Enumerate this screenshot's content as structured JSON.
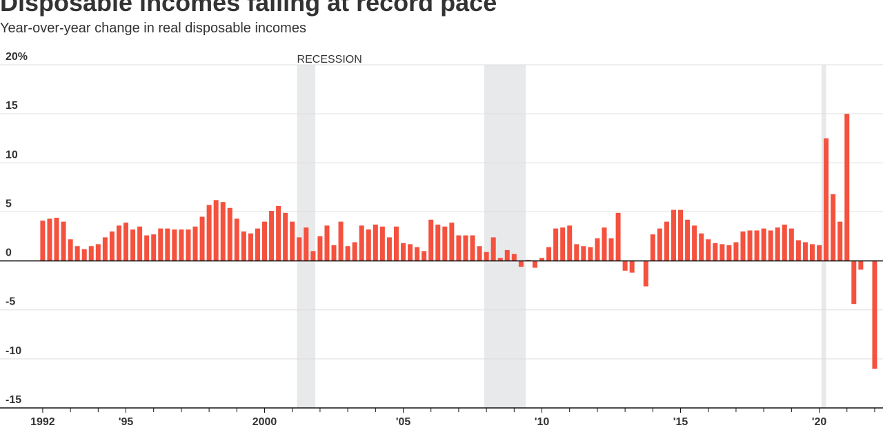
{
  "chart_data": {
    "type": "bar",
    "title": "Disposable incomes falling at record pace",
    "subtitle": "Year-over-year change in real disposable incomes",
    "annotation": "RECESSION",
    "color": "#f4513e",
    "recession_color": "#e8e9eb",
    "recessions": [
      {
        "start": 2001.17,
        "end": 2001.83
      },
      {
        "start": 2007.92,
        "end": 2009.42
      },
      {
        "start": 2020.08,
        "end": 2020.25
      }
    ],
    "x": [
      1992,
      1992.25,
      1992.5,
      1992.75,
      1993,
      1993.25,
      1993.5,
      1993.75,
      1994,
      1994.25,
      1994.5,
      1994.75,
      1995,
      1995.25,
      1995.5,
      1995.75,
      1996,
      1996.25,
      1996.5,
      1996.75,
      1997,
      1997.25,
      1997.5,
      1997.75,
      1998,
      1998.25,
      1998.5,
      1998.75,
      1999,
      1999.25,
      1999.5,
      1999.75,
      2000,
      2000.25,
      2000.5,
      2000.75,
      2001,
      2001.25,
      2001.5,
      2001.75,
      2002,
      2002.25,
      2002.5,
      2002.75,
      2003,
      2003.25,
      2003.5,
      2003.75,
      2004,
      2004.25,
      2004.5,
      2004.75,
      2005,
      2005.25,
      2005.5,
      2005.75,
      2006,
      2006.25,
      2006.5,
      2006.75,
      2007,
      2007.25,
      2007.5,
      2007.75,
      2008,
      2008.25,
      2008.5,
      2008.75,
      2009,
      2009.25,
      2009.5,
      2009.75,
      2010,
      2010.25,
      2010.5,
      2010.75,
      2011,
      2011.25,
      2011.5,
      2011.75,
      2012,
      2012.25,
      2012.5,
      2012.75,
      2013,
      2013.25,
      2013.5,
      2013.75,
      2014,
      2014.25,
      2014.5,
      2014.75,
      2015,
      2015.25,
      2015.5,
      2015.75,
      2016,
      2016.25,
      2016.5,
      2016.75,
      2017,
      2017.25,
      2017.5,
      2017.75,
      2018,
      2018.25,
      2018.5,
      2018.75,
      2019,
      2019.25,
      2019.5,
      2019.75,
      2020,
      2020.25,
      2020.5,
      2020.75,
      2021,
      2021.25,
      2021.5,
      2021.75,
      2022
    ],
    "values": [
      4.1,
      4.3,
      4.4,
      4.0,
      2.2,
      1.5,
      1.2,
      1.5,
      1.7,
      2.4,
      3.0,
      3.6,
      3.9,
      3.2,
      3.5,
      2.6,
      2.7,
      3.3,
      3.3,
      3.2,
      3.2,
      3.2,
      3.5,
      4.5,
      5.7,
      6.2,
      6.0,
      5.4,
      4.3,
      3.0,
      2.8,
      3.3,
      4.0,
      5.1,
      5.6,
      4.9,
      4.0,
      2.4,
      3.4,
      1.0,
      2.5,
      3.6,
      1.6,
      4.0,
      1.5,
      1.9,
      3.6,
      3.2,
      3.7,
      3.5,
      2.4,
      3.5,
      1.8,
      1.7,
      1.4,
      1.0,
      4.2,
      3.7,
      3.5,
      3.9,
      2.6,
      2.6,
      2.6,
      1.5,
      0.9,
      2.4,
      0.3,
      1.1,
      0.7,
      -0.6,
      0.1,
      -0.7,
      0.3,
      1.4,
      3.3,
      3.4,
      3.6,
      1.7,
      1.5,
      1.4,
      2.3,
      3.4,
      2.3,
      4.9,
      -1.0,
      -1.2,
      0.0,
      -2.6,
      2.7,
      3.3,
      4.0,
      5.2,
      5.2,
      4.2,
      3.6,
      2.8,
      2.2,
      1.8,
      1.7,
      1.6,
      1.9,
      3.0,
      3.1,
      3.1,
      3.3,
      3.1,
      3.4,
      3.7,
      3.3,
      2.1,
      1.9,
      1.7,
      1.6,
      12.5,
      6.8,
      4.0,
      15.0,
      -4.4,
      -0.9,
      0.0,
      -11.0
    ],
    "xlim": [
      1990.46,
      2022.3
    ],
    "xticks": [
      1992,
      {
        "value": 1995,
        "label": "'95"
      },
      2000,
      {
        "value": 2005,
        "label": "'05"
      },
      {
        "value": 2010,
        "label": "'10"
      },
      {
        "value": 2015,
        "label": "'15"
      },
      {
        "value": 2020,
        "label": "'20"
      }
    ],
    "xminorticks": [
      1993,
      1994,
      1996,
      1997,
      1998,
      1999,
      2001,
      2002,
      2003,
      2004,
      2006,
      2007,
      2008,
      2009,
      2011,
      2012,
      2013,
      2014,
      2016,
      2017,
      2018,
      2019,
      2021,
      2022
    ],
    "ylim": [
      -15,
      20
    ],
    "yticks": [
      {
        "value": 20,
        "label": "20%"
      },
      15,
      10,
      5,
      0,
      -5,
      -10,
      -15
    ],
    "grid": true
  }
}
